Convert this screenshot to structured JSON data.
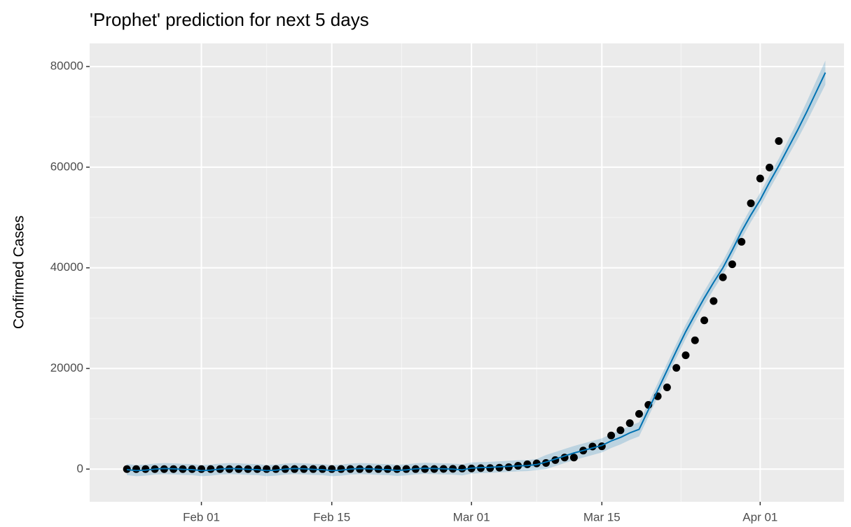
{
  "chart_data": {
    "type": "line",
    "title": "'Prophet' prediction for next 5 days",
    "y_label": "Confirmed Cases",
    "x": [
      "Jan 24",
      "Jan 25",
      "Jan 26",
      "Jan 27",
      "Jan 28",
      "Jan 29",
      "Jan 30",
      "Jan 31",
      "Feb 01",
      "Feb 02",
      "Feb 03",
      "Feb 04",
      "Feb 05",
      "Feb 06",
      "Feb 07",
      "Feb 08",
      "Feb 09",
      "Feb 10",
      "Feb 11",
      "Feb 12",
      "Feb 13",
      "Feb 14",
      "Feb 15",
      "Feb 16",
      "Feb 17",
      "Feb 18",
      "Feb 19",
      "Feb 20",
      "Feb 21",
      "Feb 22",
      "Feb 23",
      "Feb 24",
      "Feb 25",
      "Feb 26",
      "Feb 27",
      "Feb 28",
      "Feb 29",
      "Mar 01",
      "Mar 02",
      "Mar 03",
      "Mar 04",
      "Mar 05",
      "Mar 06",
      "Mar 07",
      "Mar 08",
      "Mar 09",
      "Mar 10",
      "Mar 11",
      "Mar 12",
      "Mar 13",
      "Mar 14",
      "Mar 15",
      "Mar 16",
      "Mar 17",
      "Mar 18",
      "Mar 19",
      "Mar 20",
      "Mar 21",
      "Mar 22",
      "Mar 23",
      "Mar 24",
      "Mar 25",
      "Mar 26",
      "Mar 27",
      "Mar 28",
      "Mar 29",
      "Mar 30",
      "Mar 31",
      "Apr 01",
      "Apr 02",
      "Apr 03",
      "Apr 04",
      "Apr 05",
      "Apr 06",
      "Apr 07",
      "Apr 08"
    ],
    "xlim": [
      "Jan 20",
      "Apr 10"
    ],
    "xticks": [
      "Feb 01",
      "Feb 15",
      "Mar 01",
      "Mar 15",
      "Apr 01"
    ],
    "ylim": [
      -6500,
      84600
    ],
    "yticks": [
      0,
      20000,
      40000,
      60000,
      80000
    ],
    "grid": true,
    "band": {
      "color": "#0072b2",
      "lower": [
        -1200,
        -1400,
        -1300,
        -1100,
        -1000,
        -1050,
        -1150,
        -1200,
        -1400,
        -1300,
        -1100,
        -1000,
        -1050,
        -1150,
        -1200,
        -1400,
        -1300,
        -1100,
        -1000,
        -1050,
        -1150,
        -1200,
        -1400,
        -1300,
        -1100,
        -1000,
        -1050,
        -1150,
        -1200,
        -1350,
        -1250,
        -1050,
        -950,
        -1000,
        -1050,
        -1100,
        -1250,
        -900,
        -800,
        -750,
        -650,
        -550,
        -450,
        -400,
        -200,
        0,
        600,
        1200,
        1800,
        2300,
        2800,
        3300,
        4200,
        4900,
        5800,
        6500,
        10400,
        14300,
        18200,
        22100,
        25900,
        29300,
        32600,
        35700,
        38600,
        42100,
        45800,
        49100,
        52100,
        55600,
        58900,
        62200,
        65500,
        69000,
        72700,
        76400
      ],
      "upper": [
        1000,
        800,
        900,
        1100,
        1200,
        1150,
        1050,
        1000,
        800,
        900,
        1100,
        1200,
        1150,
        1050,
        1000,
        800,
        900,
        1100,
        1200,
        1150,
        1050,
        1000,
        800,
        900,
        1100,
        1200,
        1150,
        1050,
        1000,
        850,
        950,
        1150,
        1250,
        1200,
        1150,
        1100,
        950,
        1300,
        1400,
        1450,
        1550,
        1650,
        1750,
        1800,
        2000,
        2800,
        3400,
        4000,
        4600,
        5100,
        5600,
        6100,
        7000,
        7700,
        8600,
        9300,
        13200,
        17100,
        21000,
        24900,
        28700,
        32100,
        35400,
        38500,
        41400,
        44900,
        48600,
        51900,
        54900,
        58400,
        61700,
        65400,
        69100,
        73000,
        77100,
        81200
      ]
    },
    "line": {
      "color": "#0072b2",
      "values": [
        -100,
        -300,
        -200,
        0,
        100,
        50,
        -50,
        -100,
        -300,
        -200,
        0,
        100,
        50,
        -50,
        -100,
        -300,
        -200,
        0,
        100,
        50,
        -50,
        -100,
        -300,
        -200,
        0,
        100,
        50,
        -50,
        -100,
        -250,
        -150,
        50,
        150,
        100,
        50,
        0,
        -150,
        200,
        300,
        350,
        450,
        550,
        650,
        700,
        900,
        1400,
        2000,
        2600,
        3200,
        3700,
        4200,
        4700,
        5600,
        6300,
        7200,
        7900,
        11800,
        15700,
        19600,
        23500,
        27300,
        30700,
        34000,
        37100,
        40000,
        43500,
        47200,
        50500,
        53500,
        57000,
        60300,
        63800,
        67300,
        71000,
        74900,
        78800
      ]
    },
    "points": {
      "color": "#000000",
      "values": [
        2,
        3,
        3,
        3,
        4,
        5,
        5,
        5,
        6,
        6,
        6,
        6,
        6,
        6,
        6,
        11,
        11,
        11,
        11,
        11,
        11,
        11,
        12,
        12,
        12,
        12,
        12,
        12,
        12,
        12,
        12,
        12,
        14,
        18,
        38,
        57,
        100,
        130,
        191,
        204,
        288,
        380,
        656,
        957,
        1136,
        1219,
        1794,
        2293,
        2293,
        3681,
        4496,
        4532,
        6683,
        7715,
        9124,
        10970,
        12758,
        14463,
        16243,
        20123,
        22622,
        25600,
        29551,
        33402,
        38105,
        40708,
        45170,
        52827,
        57749,
        59929,
        65202,
        null,
        null,
        null,
        null,
        null
      ]
    }
  }
}
